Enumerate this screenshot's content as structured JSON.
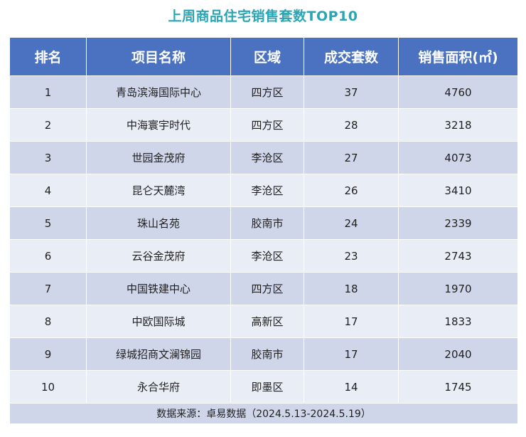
{
  "title": "上周商品住宅销售套数TOP10",
  "table": {
    "headers": [
      "排名",
      "项目名称",
      "区域",
      "成交套数",
      "销售面积(㎡)"
    ],
    "rows": [
      [
        "1",
        "青岛滨海国际中心",
        "四方区",
        "37",
        "4760"
      ],
      [
        "2",
        "中海寰宇时代",
        "四方区",
        "28",
        "3218"
      ],
      [
        "3",
        "世园金茂府",
        "李沧区",
        "27",
        "4073"
      ],
      [
        "4",
        "昆仑天麓湾",
        "李沧区",
        "26",
        "3410"
      ],
      [
        "5",
        "珠山名苑",
        "胶南市",
        "24",
        "2339"
      ],
      [
        "6",
        "云谷金茂府",
        "李沧区",
        "23",
        "2743"
      ],
      [
        "7",
        "中国铁建中心",
        "四方区",
        "18",
        "1970"
      ],
      [
        "8",
        "中欧国际城",
        "高新区",
        "17",
        "1833"
      ],
      [
        "9",
        "绿城招商文澜锦园",
        "胶南市",
        "17",
        "2040"
      ],
      [
        "10",
        "永合华府",
        "即墨区",
        "14",
        "1745"
      ]
    ],
    "source": "数据来源：卓易数据（2024.5.13-2024.5.19）"
  },
  "colors": {
    "title": "#2aa5b4",
    "header_bg": "#4a72c0",
    "row_dark": "#cfd6ea",
    "row_light": "#e9edf6"
  }
}
